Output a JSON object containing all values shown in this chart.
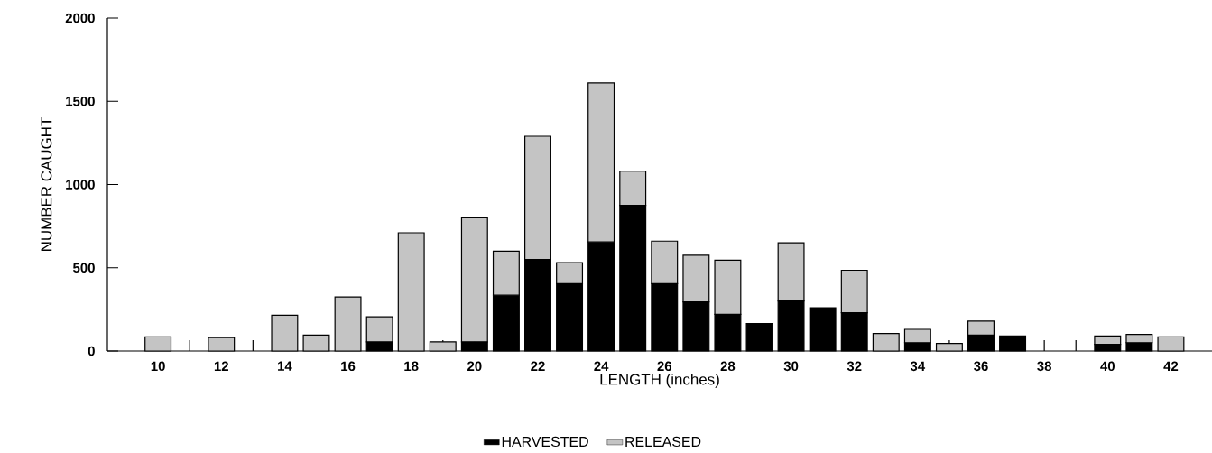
{
  "chart_data": {
    "type": "bar",
    "stacked": true,
    "xlabel": "LENGTH (inches)",
    "ylabel": "NUMBER CAUGHT",
    "legend": "bottom",
    "x": [
      10,
      11,
      12,
      13,
      14,
      15,
      16,
      17,
      18,
      19,
      20,
      21,
      22,
      23,
      24,
      25,
      26,
      27,
      28,
      29,
      30,
      31,
      32,
      33,
      34,
      35,
      36,
      37,
      38,
      39,
      40,
      41,
      42
    ],
    "xlim": [
      8.4,
      43.3
    ],
    "xticks": [
      10,
      {
        "value": 11,
        "label": null
      },
      12,
      {
        "value": 13,
        "label": null
      },
      14,
      {
        "value": 15,
        "label": null
      },
      16,
      {
        "value": 17,
        "label": null
      },
      18,
      {
        "value": 19,
        "label": null
      },
      20,
      {
        "value": 21,
        "label": null
      },
      22,
      {
        "value": 23,
        "label": null
      },
      24,
      {
        "value": 25,
        "label": null
      },
      26,
      {
        "value": 27,
        "label": null
      },
      28,
      {
        "value": 29,
        "label": null
      },
      30,
      {
        "value": 31,
        "label": null
      },
      32,
      {
        "value": 33,
        "label": null
      },
      34,
      {
        "value": 35,
        "label": null
      },
      36,
      {
        "value": 37,
        "label": null
      },
      38,
      {
        "value": 39,
        "label": null
      },
      40,
      {
        "value": 41,
        "label": null
      },
      42
    ],
    "ylim": [
      0,
      2000
    ],
    "yticks": [
      0,
      500,
      1000,
      1500,
      2000
    ],
    "series": [
      {
        "name": "HARVESTED",
        "color": "#000000",
        "values": [
          null,
          null,
          null,
          null,
          null,
          null,
          null,
          55,
          null,
          null,
          55,
          335,
          550,
          405,
          655,
          875,
          405,
          295,
          220,
          165,
          300,
          260,
          230,
          null,
          50,
          null,
          95,
          90,
          null,
          null,
          40,
          50,
          null
        ]
      },
      {
        "name": "RELEASED",
        "color": "#c4c4c4",
        "values": [
          85,
          null,
          80,
          null,
          215,
          95,
          325,
          150,
          710,
          55,
          745,
          265,
          740,
          125,
          955,
          205,
          255,
          280,
          325,
          null,
          350,
          null,
          255,
          105,
          80,
          45,
          85,
          null,
          null,
          null,
          50,
          50,
          85
        ]
      }
    ]
  }
}
